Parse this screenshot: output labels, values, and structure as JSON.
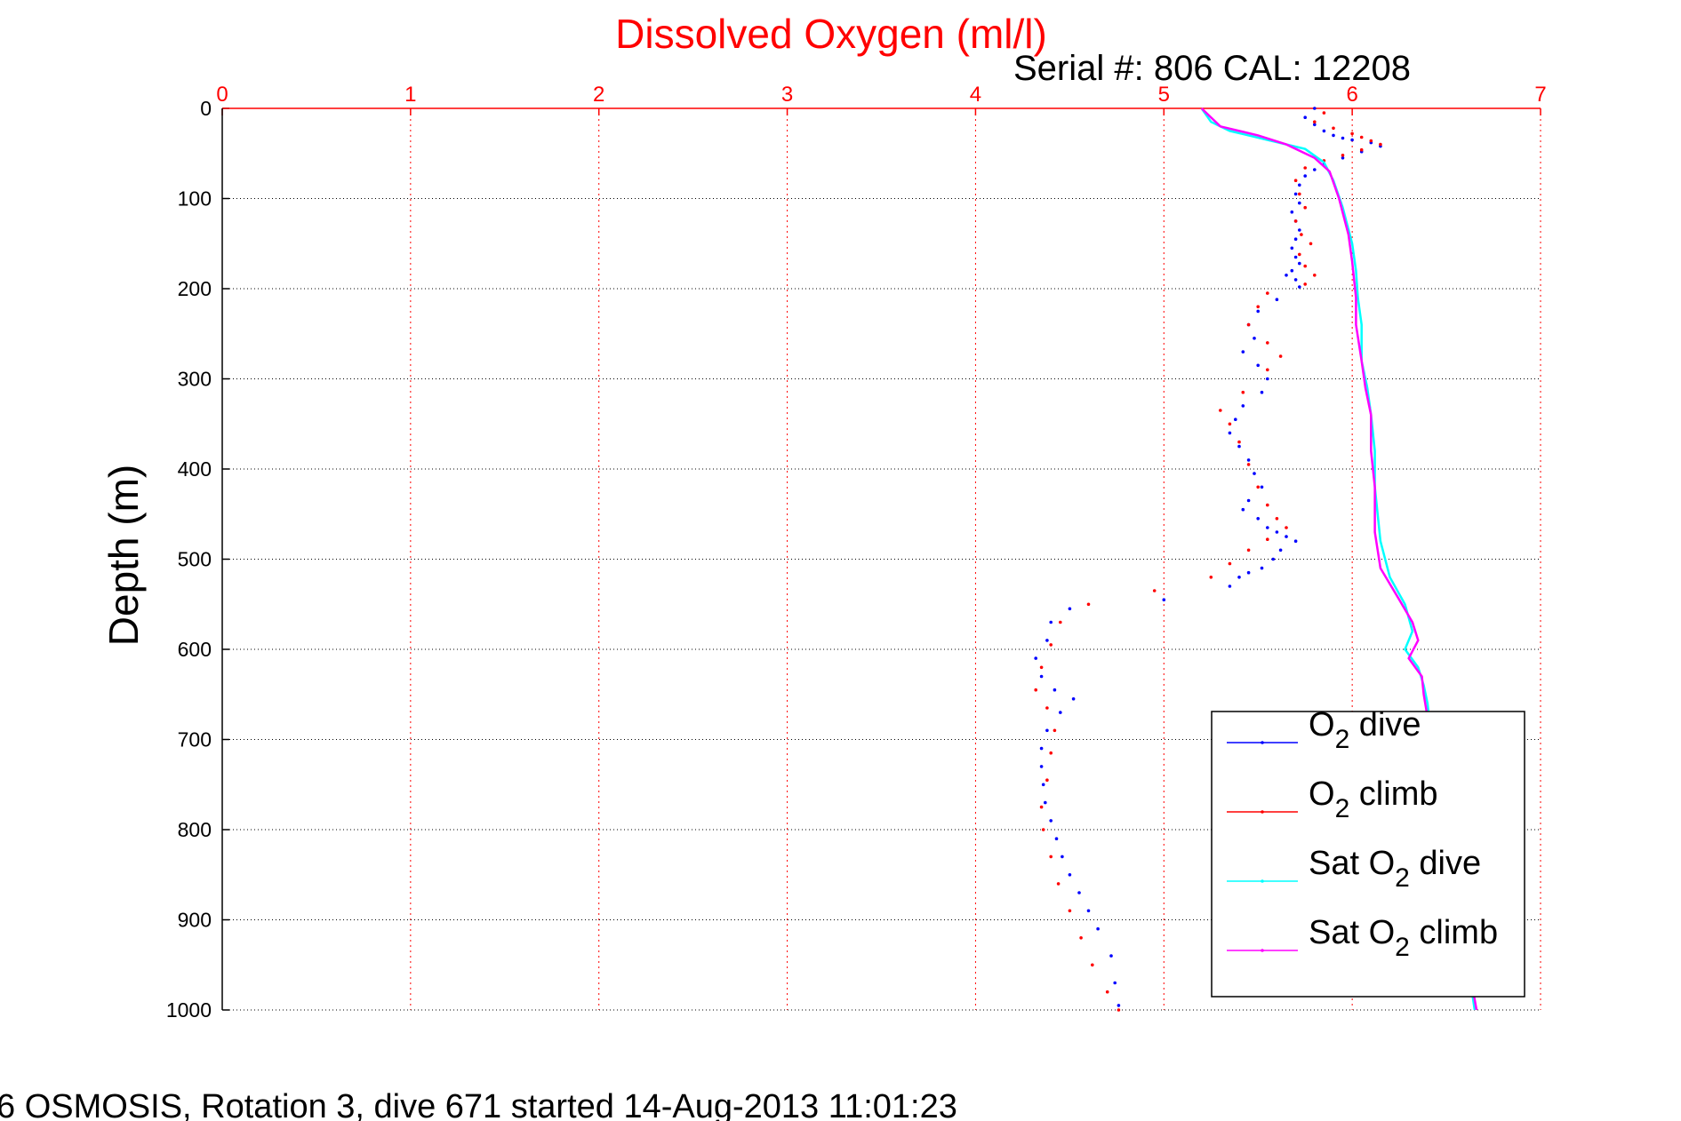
{
  "figure": {
    "title": "Dissolved Oxygen (ml/l)",
    "subtitle": "Serial #: 806  CAL: 12208",
    "footer": "6 OSMOSIS, Rotation 3, dive 671 started 14-Aug-2013 11:01:23"
  },
  "colors": {
    "title": "#ff0000",
    "top_ticks": "#ff0000",
    "grid_x": "#ff0000",
    "grid_y": "#000000",
    "o2_dive": "#0000ff",
    "o2_climb": "#ff0000",
    "sat_dive": "#00ffff",
    "sat_climb": "#ff00ff"
  },
  "chart_data": {
    "type": "scatter",
    "title": "Dissolved Oxygen (ml/l)",
    "xlabel": "",
    "ylabel": "Depth (m)",
    "xlim": [
      0,
      7
    ],
    "ylim": [
      0,
      1000
    ],
    "y_reversed": true,
    "x_axis_location": "top",
    "xticks": [
      "0",
      "1",
      "2",
      "3",
      "4",
      "5",
      "6",
      "7"
    ],
    "yticks": [
      "0",
      "100",
      "200",
      "300",
      "400",
      "500",
      "600",
      "700",
      "800",
      "900",
      "1000"
    ],
    "grid": true,
    "legend": "bottom-right",
    "series": [
      {
        "name": "O2 dive",
        "style": "dots",
        "x": [
          5.8,
          5.75,
          5.8,
          5.85,
          5.9,
          5.95,
          6.0,
          6.1,
          6.15,
          6.05,
          5.95,
          5.85,
          5.8,
          5.75,
          5.72,
          5.7,
          5.72,
          5.68,
          5.7,
          5.72,
          5.7,
          5.68,
          5.7,
          5.72,
          5.68,
          5.65,
          5.7,
          5.72,
          5.6,
          5.5,
          5.45,
          5.48,
          5.42,
          5.5,
          5.55,
          5.52,
          5.42,
          5.38,
          5.35,
          5.4,
          5.45,
          5.48,
          5.52,
          5.45,
          5.42,
          5.5,
          5.55,
          5.6,
          5.65,
          5.7,
          5.62,
          5.58,
          5.52,
          5.45,
          5.4,
          5.35,
          5.0,
          4.5,
          4.4,
          4.38,
          4.32,
          4.35,
          4.42,
          4.52,
          4.45,
          4.38,
          4.35,
          4.35,
          4.36,
          4.37,
          4.4,
          4.43,
          4.46,
          4.5,
          4.55,
          4.6,
          4.65,
          4.72,
          4.74,
          4.76
        ],
        "y": [
          0,
          10,
          18,
          25,
          30,
          33,
          35,
          38,
          42,
          48,
          55,
          62,
          68,
          75,
          85,
          95,
          105,
          115,
          125,
          135,
          145,
          155,
          165,
          172,
          180,
          185,
          190,
          198,
          212,
          225,
          240,
          255,
          270,
          285,
          300,
          315,
          330,
          345,
          360,
          375,
          390,
          405,
          420,
          435,
          445,
          455,
          465,
          470,
          475,
          480,
          490,
          500,
          510,
          515,
          520,
          530,
          545,
          555,
          570,
          590,
          610,
          630,
          645,
          655,
          670,
          690,
          710,
          730,
          750,
          770,
          790,
          810,
          830,
          850,
          870,
          890,
          910,
          940,
          970,
          995
        ]
      },
      {
        "name": "O2 climb",
        "style": "dots",
        "x": [
          5.85,
          5.8,
          5.9,
          6.0,
          6.05,
          6.1,
          6.15,
          6.05,
          5.95,
          5.85,
          5.75,
          5.7,
          5.72,
          5.75,
          5.7,
          5.73,
          5.78,
          5.72,
          5.75,
          5.8,
          5.75,
          5.55,
          5.5,
          5.45,
          5.55,
          5.62,
          5.55,
          5.42,
          5.3,
          5.35,
          5.4,
          5.45,
          5.5,
          5.55,
          5.6,
          5.65,
          5.55,
          5.45,
          5.35,
          5.25,
          4.95,
          4.6,
          4.45,
          4.4,
          4.35,
          4.32,
          4.38,
          4.42,
          4.4,
          4.38,
          4.35,
          4.36,
          4.4,
          4.44,
          4.5,
          4.56,
          4.62,
          4.7,
          4.76
        ],
        "y": [
          5,
          15,
          22,
          28,
          32,
          36,
          40,
          46,
          52,
          58,
          66,
          80,
          95,
          110,
          125,
          140,
          150,
          162,
          175,
          185,
          195,
          205,
          220,
          240,
          260,
          275,
          290,
          315,
          335,
          350,
          370,
          395,
          420,
          440,
          455,
          465,
          478,
          490,
          505,
          520,
          535,
          550,
          570,
          595,
          620,
          645,
          665,
          690,
          715,
          745,
          775,
          800,
          830,
          860,
          890,
          920,
          950,
          980,
          1000
        ]
      },
      {
        "name": "Sat O2 dive",
        "style": "line",
        "x": [
          5.2,
          5.25,
          5.35,
          5.55,
          5.75,
          5.85,
          5.9,
          5.95,
          6.0,
          6.02,
          6.03,
          6.05,
          6.05,
          6.08,
          6.1,
          6.12,
          6.12,
          6.15,
          6.2,
          6.28,
          6.32,
          6.28,
          6.35,
          6.38,
          6.4,
          6.42,
          6.45,
          6.48,
          6.5,
          6.55,
          6.6,
          6.65
        ],
        "y": [
          0,
          15,
          25,
          35,
          45,
          60,
          80,
          110,
          150,
          180,
          210,
          240,
          280,
          310,
          340,
          380,
          420,
          480,
          520,
          550,
          580,
          600,
          620,
          640,
          660,
          700,
          740,
          780,
          820,
          870,
          930,
          1000
        ]
      },
      {
        "name": "Sat O2 climb",
        "style": "line",
        "x": [
          5.2,
          5.3,
          5.5,
          5.65,
          5.8,
          5.88,
          5.93,
          5.98,
          6.0,
          6.02,
          6.02,
          6.05,
          6.07,
          6.1,
          6.1,
          6.12,
          6.12,
          6.15,
          6.25,
          6.32,
          6.35,
          6.3,
          6.37,
          6.38,
          6.42,
          6.45,
          6.48,
          6.5,
          6.55,
          6.6,
          6.66
        ],
        "y": [
          0,
          20,
          30,
          40,
          55,
          70,
          100,
          140,
          170,
          210,
          240,
          280,
          310,
          340,
          380,
          420,
          470,
          510,
          545,
          570,
          590,
          610,
          630,
          650,
          700,
          740,
          780,
          820,
          870,
          930,
          1000
        ]
      }
    ]
  },
  "legend": {
    "items": [
      {
        "prefix": "O",
        "sub": "2",
        "suffix": " dive"
      },
      {
        "prefix": "O",
        "sub": "2",
        "suffix": " climb"
      },
      {
        "prefix": "Sat O",
        "sub": "2",
        "suffix": " dive"
      },
      {
        "prefix": "Sat O",
        "sub": "2",
        "suffix": " climb"
      }
    ]
  }
}
